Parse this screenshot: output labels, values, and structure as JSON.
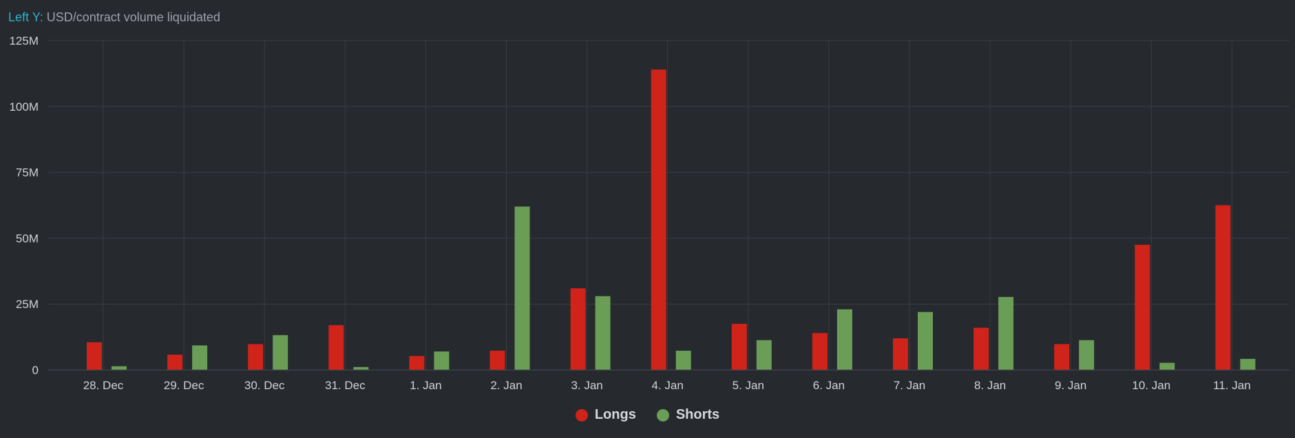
{
  "header": {
    "prefix": "Left Y:",
    "text": "USD/contract volume liquidated"
  },
  "colors": {
    "longs": "#d0231a",
    "shorts": "#6a9e57",
    "grid": "#3a3d43",
    "tick_text": "#cfd1d5"
  },
  "chart_data": {
    "type": "bar",
    "categories": [
      "28. Dec",
      "29. Dec",
      "30. Dec",
      "31. Dec",
      "1. Jan",
      "2. Jan",
      "3. Jan",
      "4. Jan",
      "5. Jan",
      "6. Jan",
      "7. Jan",
      "8. Jan",
      "9. Jan",
      "10. Jan",
      "11. Jan"
    ],
    "series": [
      {
        "name": "Longs",
        "values": [
          10.5,
          5.8,
          9.8,
          17.0,
          5.3,
          7.3,
          31.0,
          114.0,
          17.5,
          14.0,
          12.0,
          16.0,
          9.8,
          47.5,
          62.5
        ]
      },
      {
        "name": "Shorts",
        "values": [
          1.4,
          9.3,
          13.2,
          1.1,
          7.0,
          62.0,
          28.0,
          7.3,
          11.3,
          23.0,
          22.0,
          27.7,
          11.3,
          2.7,
          4.2
        ]
      }
    ],
    "y_ticks": [
      "0",
      "25M",
      "50M",
      "75M",
      "100M",
      "125M"
    ],
    "ylim": [
      0,
      125
    ],
    "grid": true,
    "legend_position": "bottom-center"
  },
  "legend": {
    "longs_label": "Longs",
    "shorts_label": "Shorts"
  }
}
